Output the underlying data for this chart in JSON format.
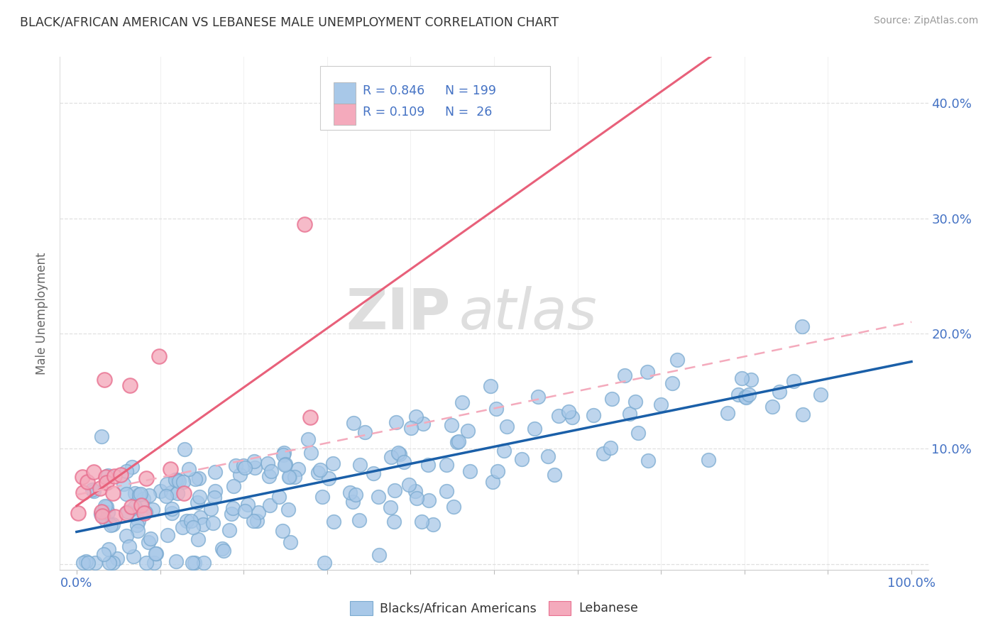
{
  "title": "BLACK/AFRICAN AMERICAN VS LEBANESE MALE UNEMPLOYMENT CORRELATION CHART",
  "source": "Source: ZipAtlas.com",
  "ylabel": "Male Unemployment",
  "watermark_zip": "ZIP",
  "watermark_atlas": "atlas",
  "legend_labels": [
    "Blacks/African Americans",
    "Lebanese"
  ],
  "blue_R": "0.846",
  "blue_N": "199",
  "pink_R": "0.109",
  "pink_N": "26",
  "blue_color": "#A8C8E8",
  "blue_edge_color": "#7AAAD0",
  "blue_line_color": "#1A5FA8",
  "pink_color": "#F4AABC",
  "pink_edge_color": "#E87090",
  "pink_line_color": "#E8607A",
  "pink_dash_color": "#F4AABC",
  "background_color": "#FFFFFF",
  "grid_color": "#CCCCCC",
  "title_color": "#333333",
  "axis_label_color": "#666666",
  "tick_label_color": "#4472C4",
  "legend_text_color": "#4472C4",
  "source_color": "#999999",
  "xlim": [
    -0.02,
    1.02
  ],
  "ylim": [
    -0.005,
    0.44
  ],
  "x_tick_positions": [
    0.0,
    0.1,
    0.2,
    0.3,
    0.4,
    0.5,
    0.6,
    0.7,
    0.8,
    0.9,
    1.0
  ],
  "y_tick_positions": [
    0.0,
    0.1,
    0.2,
    0.3,
    0.4
  ],
  "y_tick_labels": [
    "",
    "10.0%",
    "20.0%",
    "30.0%",
    "40.0%"
  ]
}
